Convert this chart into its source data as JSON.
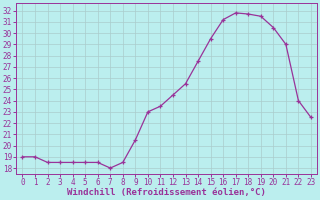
{
  "x": [
    0,
    1,
    2,
    3,
    4,
    5,
    6,
    7,
    8,
    9,
    10,
    11,
    12,
    13,
    14,
    15,
    16,
    17,
    18,
    19,
    20,
    21,
    22,
    23
  ],
  "y": [
    19,
    19,
    18.5,
    18.5,
    18.5,
    18.5,
    18.5,
    18,
    18.5,
    20.5,
    23,
    23.5,
    24.5,
    25.5,
    27.5,
    29.5,
    31.2,
    31.8,
    31.7,
    31.5,
    30.5,
    29,
    24,
    22.5
  ],
  "line_color": "#993399",
  "marker": "+",
  "bg_color": "#bbeeee",
  "grid_color": "#aacccc",
  "xlabel": "Windchill (Refroidissement éolien,°C)",
  "yticks": [
    18,
    19,
    20,
    21,
    22,
    23,
    24,
    25,
    26,
    27,
    28,
    29,
    30,
    31,
    32
  ],
  "xticks": [
    0,
    1,
    2,
    3,
    4,
    5,
    6,
    7,
    8,
    9,
    10,
    11,
    12,
    13,
    14,
    15,
    16,
    17,
    18,
    19,
    20,
    21,
    22,
    23
  ],
  "xlim": [
    -0.5,
    23.5
  ],
  "ylim": [
    17.5,
    32.7
  ],
  "font_color": "#993399",
  "font_size": 5.5,
  "xlabel_size": 6.5
}
